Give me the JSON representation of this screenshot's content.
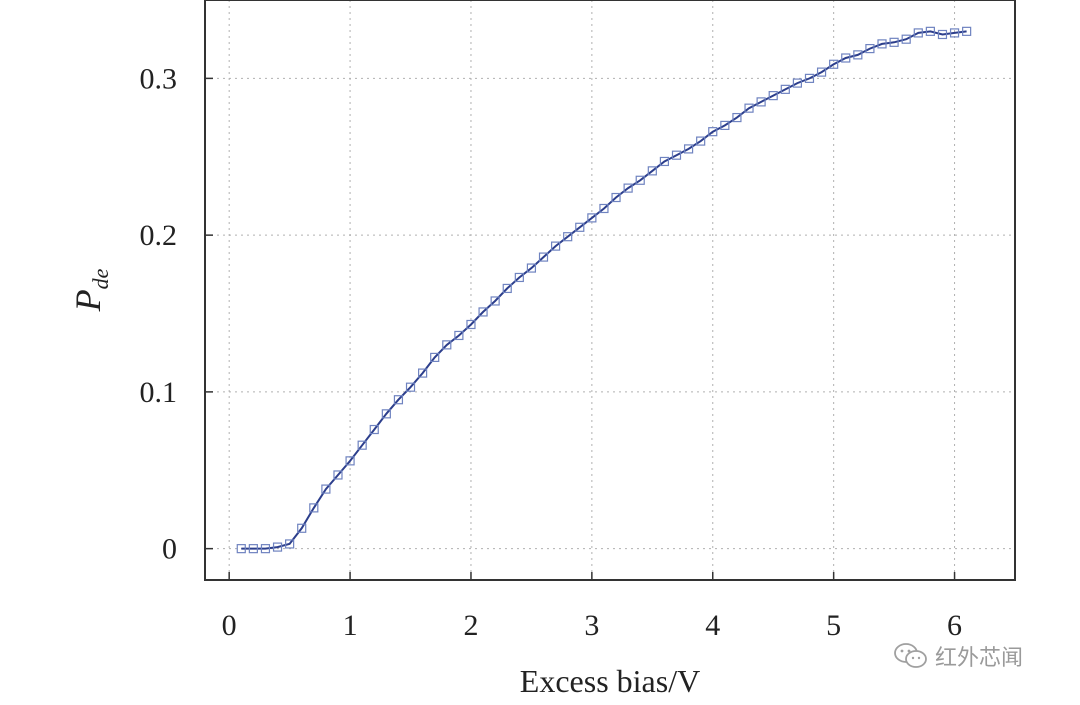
{
  "chart_data": {
    "type": "line",
    "xlabel": "Excess bias/V",
    "ylabel_main": "P",
    "ylabel_sub": "de",
    "xlim": [
      -0.2,
      6.5
    ],
    "ylim": [
      -0.02,
      0.35
    ],
    "xticks": [
      "0",
      "1",
      "2",
      "3",
      "4",
      "5",
      "6"
    ],
    "yticks": [
      "0",
      "0.1",
      "0.2",
      "0.3"
    ],
    "grid": true,
    "marker": "square",
    "line_color": "#2c3e8c",
    "marker_color": "#6f83c0",
    "series": [
      {
        "x": [
          0.1,
          0.2,
          0.3,
          0.4,
          0.5,
          0.6,
          0.7,
          0.8,
          0.9,
          1.0,
          1.1,
          1.2,
          1.3,
          1.4,
          1.5,
          1.6,
          1.7,
          1.8,
          1.9,
          2.0,
          2.1,
          2.2,
          2.3,
          2.4,
          2.5,
          2.6,
          2.7,
          2.8,
          2.9,
          3.0,
          3.1,
          3.2,
          3.3,
          3.4,
          3.5,
          3.6,
          3.7,
          3.8,
          3.9,
          4.0,
          4.1,
          4.2,
          4.3,
          4.4,
          4.5,
          4.6,
          4.7,
          4.8,
          4.9,
          5.0,
          5.1,
          5.2,
          5.3,
          5.4,
          5.5,
          5.6,
          5.7,
          5.8,
          5.9,
          6.0,
          6.1
        ],
        "y": [
          0.0,
          0.0,
          0.0,
          0.001,
          0.003,
          0.013,
          0.026,
          0.038,
          0.047,
          0.056,
          0.066,
          0.076,
          0.086,
          0.095,
          0.103,
          0.112,
          0.122,
          0.13,
          0.136,
          0.143,
          0.151,
          0.158,
          0.166,
          0.173,
          0.179,
          0.186,
          0.193,
          0.199,
          0.205,
          0.211,
          0.217,
          0.224,
          0.23,
          0.235,
          0.241,
          0.247,
          0.251,
          0.255,
          0.26,
          0.266,
          0.27,
          0.275,
          0.281,
          0.285,
          0.289,
          0.293,
          0.297,
          0.3,
          0.304,
          0.309,
          0.313,
          0.315,
          0.319,
          0.322,
          0.323,
          0.325,
          0.329,
          0.33,
          0.328,
          0.329,
          0.33
        ]
      }
    ]
  },
  "watermark": {
    "text": "红外芯闻",
    "icon": "wechat-icon"
  }
}
